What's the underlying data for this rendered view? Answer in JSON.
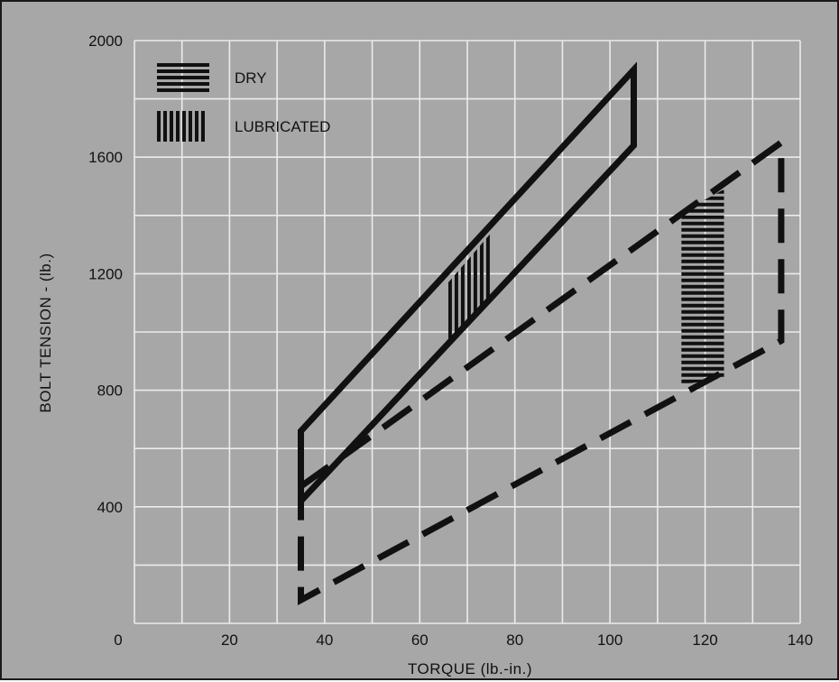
{
  "chart_data": {
    "type": "line",
    "title": "",
    "xlabel": "TORQUE (lb.-in.)",
    "ylabel": "BOLT TENSION - (lb.)",
    "xlim": [
      0,
      140
    ],
    "ylim": [
      0,
      2000
    ],
    "x_ticks": [
      0,
      20,
      40,
      60,
      80,
      100,
      120,
      140
    ],
    "y_ticks": [
      400,
      800,
      1200,
      1600,
      2000
    ],
    "grid": true,
    "legend_position": "top-left",
    "series": [
      {
        "name": "DRY",
        "line_style": "solid",
        "fill_pattern": "horizontal-hatch",
        "polygon": [
          [
            35,
            660
          ],
          [
            105,
            1900
          ],
          [
            105,
            1640
          ],
          [
            35,
            420
          ]
        ],
        "hatched_region": [
          [
            115,
            1410
          ],
          [
            124,
            1490
          ],
          [
            124,
            840
          ],
          [
            115,
            820
          ]
        ]
      },
      {
        "name": "LUBRICATED",
        "line_style": "dashed",
        "fill_pattern": "vertical-hatch",
        "polygon": [
          [
            35,
            470
          ],
          [
            136,
            1650
          ],
          [
            136,
            970
          ],
          [
            35,
            80
          ]
        ],
        "hatched_region": [
          [
            66,
            1170
          ],
          [
            75,
            1340
          ],
          [
            75,
            1110
          ],
          [
            66,
            960
          ]
        ]
      }
    ],
    "legend": [
      {
        "label": "DRY",
        "pattern": "horizontal-hatch"
      },
      {
        "label": "LUBRICATED",
        "pattern": "vertical-hatch"
      }
    ],
    "colors": {
      "background": "#a7a7a7",
      "grid": "#ececec",
      "ink": "#111111"
    }
  }
}
